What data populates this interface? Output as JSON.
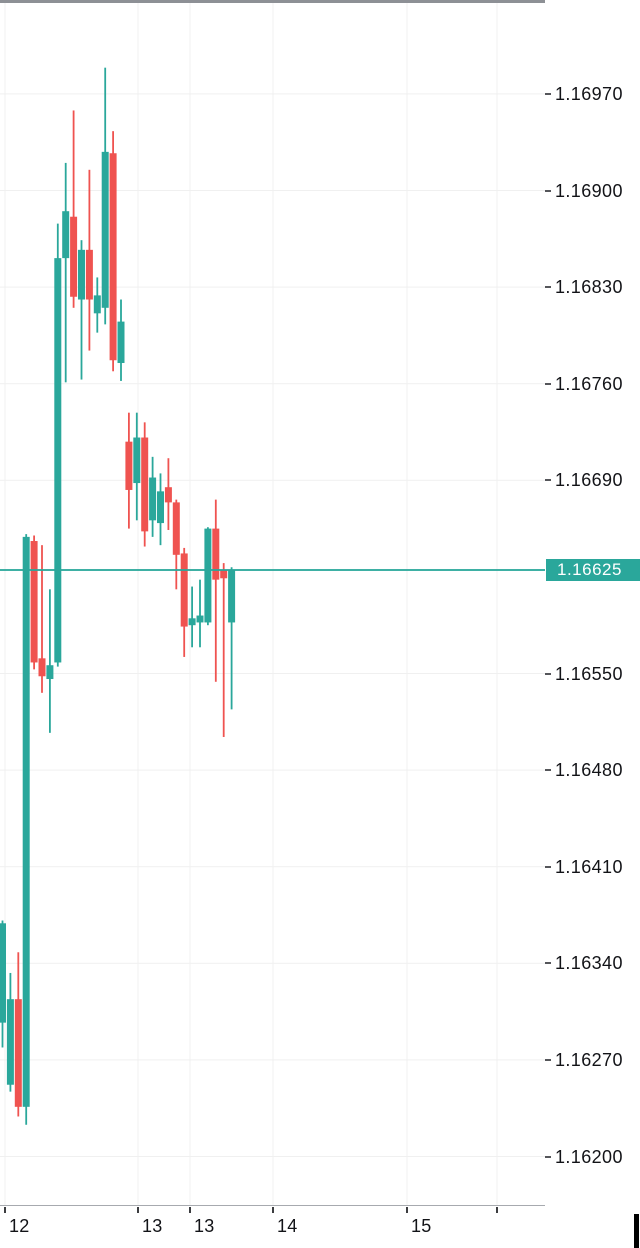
{
  "chart_data": {
    "type": "candlestick",
    "up_color": "#2aa79b",
    "down_color": "#ef5350",
    "grid_color": "#f0f0f0",
    "price_line": {
      "value": 1.16625,
      "label": "1.16625",
      "color": "#2aa79b"
    },
    "y_axis": {
      "side": "right",
      "tick_step": 0.0007,
      "tick_labels": [
        "1.16970",
        "1.16900",
        "1.16830",
        "1.16760",
        "1.16690",
        "1.16550",
        "1.16480",
        "1.16410",
        "1.16340",
        "1.16270",
        "1.16200"
      ],
      "visible_range": [
        1.16195,
        1.17005
      ]
    },
    "x_axis": {
      "tick_labels": [
        "12",
        "13",
        "13",
        "14",
        "15"
      ]
    },
    "candles": [
      {
        "o": 1.16297,
        "h": 1.16371,
        "l": 1.16279,
        "c": 1.16369
      },
      {
        "o": 1.16252,
        "h": 1.16333,
        "l": 1.16247,
        "c": 1.16314
      },
      {
        "o": 1.16314,
        "h": 1.16348,
        "l": 1.16229,
        "c": 1.16236
      },
      {
        "o": 1.16236,
        "h": 1.16651,
        "l": 1.16223,
        "c": 1.16649
      },
      {
        "o": 1.16646,
        "h": 1.1665,
        "l": 1.16553,
        "c": 1.16558
      },
      {
        "o": 1.16561,
        "h": 1.16643,
        "l": 1.16536,
        "c": 1.16548
      },
      {
        "o": 1.16546,
        "h": 1.16611,
        "l": 1.16507,
        "c": 1.16556
      },
      {
        "o": 1.16558,
        "h": 1.16876,
        "l": 1.16555,
        "c": 1.16851
      },
      {
        "o": 1.16851,
        "h": 1.1692,
        "l": 1.16761,
        "c": 1.16885
      },
      {
        "o": 1.16881,
        "h": 1.16958,
        "l": 1.16815,
        "c": 1.16823
      },
      {
        "o": 1.16821,
        "h": 1.16864,
        "l": 1.16763,
        "c": 1.16857
      },
      {
        "o": 1.16857,
        "h": 1.16915,
        "l": 1.16784,
        "c": 1.16821
      },
      {
        "o": 1.16811,
        "h": 1.16837,
        "l": 1.16797,
        "c": 1.16824
      },
      {
        "o": 1.16815,
        "h": 1.16989,
        "l": 1.16803,
        "c": 1.16928
      },
      {
        "o": 1.16927,
        "h": 1.16943,
        "l": 1.16769,
        "c": 1.16777
      },
      {
        "o": 1.16775,
        "h": 1.16821,
        "l": 1.16762,
        "c": 1.16805
      },
      {
        "o": 1.16718,
        "h": 1.16739,
        "l": 1.16655,
        "c": 1.16683
      },
      {
        "o": 1.16688,
        "h": 1.16739,
        "l": 1.16661,
        "c": 1.16721
      },
      {
        "o": 1.16721,
        "h": 1.16732,
        "l": 1.16642,
        "c": 1.16653
      },
      {
        "o": 1.16661,
        "h": 1.16707,
        "l": 1.16649,
        "c": 1.16692
      },
      {
        "o": 1.16659,
        "h": 1.16695,
        "l": 1.16643,
        "c": 1.16682
      },
      {
        "o": 1.16685,
        "h": 1.16706,
        "l": 1.16654,
        "c": 1.16674
      },
      {
        "o": 1.16674,
        "h": 1.16676,
        "l": 1.16611,
        "c": 1.16636
      },
      {
        "o": 1.16637,
        "h": 1.16641,
        "l": 1.16562,
        "c": 1.16584
      },
      {
        "o": 1.16585,
        "h": 1.16613,
        "l": 1.16569,
        "c": 1.1659
      },
      {
        "o": 1.16587,
        "h": 1.16618,
        "l": 1.16569,
        "c": 1.16592
      },
      {
        "o": 1.16587,
        "h": 1.16656,
        "l": 1.16585,
        "c": 1.16655
      },
      {
        "o": 1.16655,
        "h": 1.16676,
        "l": 1.16544,
        "c": 1.16618
      },
      {
        "o": 1.16625,
        "h": 1.1663,
        "l": 1.16504,
        "c": 1.16619
      },
      {
        "o": 1.16587,
        "h": 1.16627,
        "l": 1.16524,
        "c": 1.16625
      }
    ]
  }
}
